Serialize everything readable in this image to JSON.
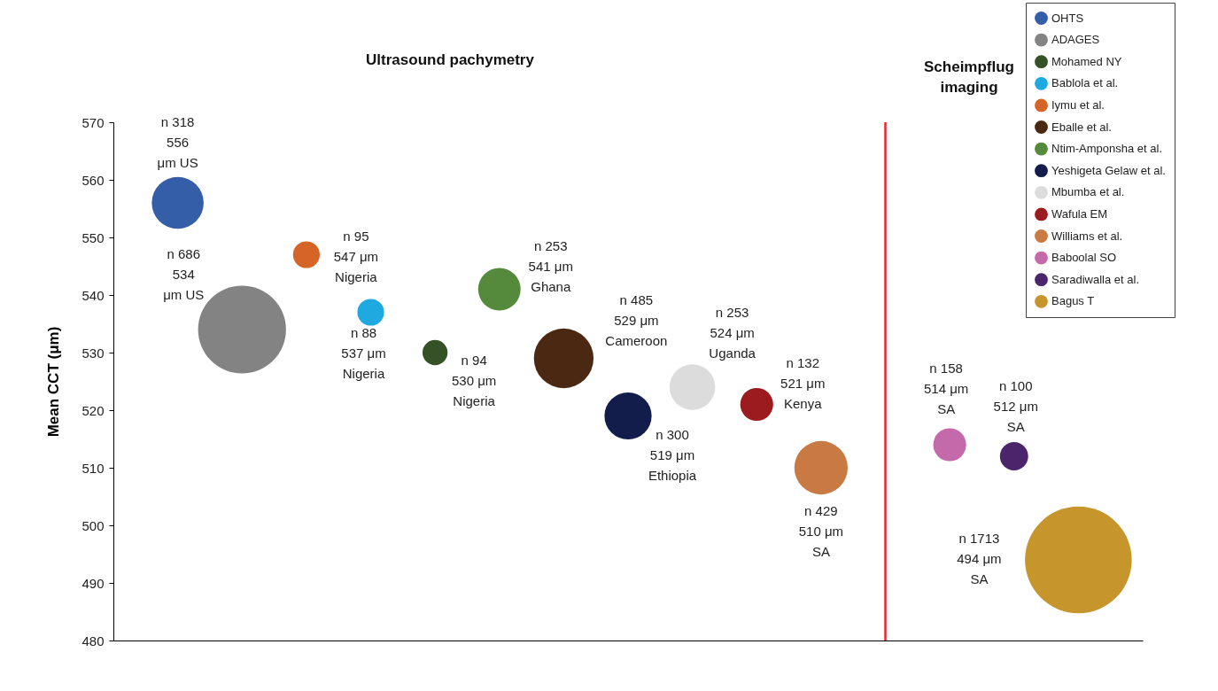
{
  "chart_data": {
    "type": "bubble",
    "ylabel": "Mean CCT (μm)",
    "categories": [
      null,
      null,
      null,
      null,
      null,
      null,
      null,
      null,
      null,
      null,
      null,
      null,
      null,
      null,
      null
    ],
    "ylim": [
      480,
      570
    ],
    "yticks": [
      480,
      490,
      500,
      510,
      520,
      530,
      540,
      550,
      560,
      570
    ],
    "tick_labels": "y",
    "grid": false,
    "legend": "top right",
    "annotations": [
      "Ultrasound pachymetry",
      "Scheimpflug\nimaging"
    ],
    "series": [
      {
        "name": "OHTS",
        "color": "#355ea8",
        "values": [
          556,
          null,
          null,
          null,
          null,
          null,
          null,
          null,
          null,
          null,
          null,
          null,
          null,
          null,
          null
        ],
        "sizes": [
          0.236,
          null,
          null,
          null,
          null,
          null,
          null,
          null,
          null,
          null,
          null,
          null,
          null,
          null,
          null
        ],
        "value_labels": [
          "n 318\n556\nμm US",
          null,
          null,
          null,
          null,
          null,
          null,
          null,
          null,
          null,
          null,
          null,
          null,
          null,
          null
        ]
      },
      {
        "name": "ADAGES",
        "color": "#838383",
        "values": [
          null,
          534,
          null,
          null,
          null,
          null,
          null,
          null,
          null,
          null,
          null,
          null,
          null,
          null,
          null
        ],
        "sizes": [
          null,
          0.678,
          null,
          null,
          null,
          null,
          null,
          null,
          null,
          null,
          null,
          null,
          null,
          null,
          null
        ],
        "value_labels": [
          null,
          "n 686\n534\nμm US",
          null,
          null,
          null,
          null,
          null,
          null,
          null,
          null,
          null,
          null,
          null,
          null,
          null
        ]
      },
      {
        "name": "Mohamed NY",
        "color": "#345226",
        "values": [
          null,
          null,
          null,
          null,
          530,
          null,
          null,
          null,
          null,
          null,
          null,
          null,
          null,
          null,
          null
        ],
        "sizes": [
          null,
          null,
          null,
          null,
          0.055,
          null,
          null,
          null,
          null,
          null,
          null,
          null,
          null,
          null,
          null
        ],
        "value_labels": [
          null,
          null,
          null,
          null,
          "n 94\n530 μm\nNigeria",
          null,
          null,
          null,
          null,
          null,
          null,
          null,
          null,
          null,
          null
        ]
      },
      {
        "name": "Bablola et al.",
        "color": "#1ea9e1",
        "values": [
          null,
          null,
          null,
          537,
          null,
          null,
          null,
          null,
          null,
          null,
          null,
          null,
          null,
          null,
          null
        ],
        "sizes": [
          null,
          null,
          null,
          0.0625,
          null,
          null,
          null,
          null,
          null,
          null,
          null,
          null,
          null,
          null,
          null
        ],
        "value_labels": [
          null,
          null,
          null,
          "n 88\n537 μm\nNigeria",
          null,
          null,
          null,
          null,
          null,
          null,
          null,
          null,
          null,
          null,
          null
        ]
      },
      {
        "name": "Iymu et al.",
        "color": "#d66426",
        "values": [
          null,
          null,
          547,
          null,
          null,
          null,
          null,
          null,
          null,
          null,
          null,
          null,
          null,
          null,
          null
        ],
        "sizes": [
          null,
          null,
          0.0625,
          null,
          null,
          null,
          null,
          null,
          null,
          null,
          null,
          null,
          null,
          null,
          null
        ],
        "value_labels": [
          null,
          null,
          "n 95\n547 μm\nNigeria",
          null,
          null,
          null,
          null,
          null,
          null,
          null,
          null,
          null,
          null,
          null,
          null
        ]
      },
      {
        "name": "Eballe et al.",
        "color": "#4b2811",
        "values": [
          null,
          null,
          null,
          null,
          null,
          null,
          529,
          null,
          null,
          null,
          null,
          null,
          null,
          null,
          null
        ],
        "sizes": [
          null,
          null,
          null,
          null,
          null,
          null,
          0.312,
          null,
          null,
          null,
          null,
          null,
          null,
          null,
          null
        ],
        "value_labels": [
          null,
          null,
          null,
          null,
          null,
          null,
          "n 485\n529 μm\nCameroon",
          null,
          null,
          null,
          null,
          null,
          null,
          null,
          null
        ]
      },
      {
        "name": "Ntim-Amponsha et al.",
        "color": "#558a3c",
        "values": [
          null,
          null,
          null,
          null,
          null,
          541,
          null,
          null,
          null,
          null,
          null,
          null,
          null,
          null,
          null
        ],
        "sizes": [
          null,
          null,
          null,
          null,
          null,
          0.158,
          null,
          null,
          null,
          null,
          null,
          null,
          null,
          null,
          null
        ],
        "value_labels": [
          null,
          null,
          null,
          null,
          null,
          "n 253\n541 μm\nGhana",
          null,
          null,
          null,
          null,
          null,
          null,
          null,
          null,
          null
        ]
      },
      {
        "name": "Yeshigeta Gelaw et al.",
        "color": "#121d4b",
        "values": [
          null,
          null,
          null,
          null,
          null,
          null,
          null,
          519,
          null,
          null,
          null,
          null,
          null,
          null,
          null
        ],
        "sizes": [
          null,
          null,
          null,
          null,
          null,
          null,
          null,
          0.195,
          null,
          null,
          null,
          null,
          null,
          null,
          null
        ],
        "value_labels": [
          null,
          null,
          null,
          null,
          null,
          null,
          null,
          "n 300\n519 μm\nEthiopia",
          null,
          null,
          null,
          null,
          null,
          null,
          null
        ]
      },
      {
        "name": "Mbumba et al.",
        "color": "#dcdcdc",
        "values": [
          null,
          null,
          null,
          null,
          null,
          null,
          null,
          null,
          524,
          null,
          null,
          null,
          null,
          null,
          null
        ],
        "sizes": [
          null,
          null,
          null,
          null,
          null,
          null,
          null,
          null,
          0.182,
          null,
          null,
          null,
          null,
          null,
          null
        ],
        "value_labels": [
          null,
          null,
          null,
          null,
          null,
          null,
          null,
          null,
          "n 253\n524 μm\nUganda",
          null,
          null,
          null,
          null,
          null,
          null
        ]
      },
      {
        "name": "Wafula EM",
        "color": "#9c1b1f",
        "values": [
          null,
          null,
          null,
          null,
          null,
          null,
          null,
          null,
          null,
          521,
          null,
          null,
          null,
          null,
          null
        ],
        "sizes": [
          null,
          null,
          null,
          null,
          null,
          null,
          null,
          null,
          null,
          0.095,
          null,
          null,
          null,
          null,
          null
        ],
        "value_labels": [
          null,
          null,
          null,
          null,
          null,
          null,
          null,
          null,
          null,
          "n 132\n521 μm\nKenya",
          null,
          null,
          null,
          null,
          null
        ]
      },
      {
        "name": "Williams et al.",
        "color": "#c97a43",
        "values": [
          null,
          null,
          null,
          null,
          null,
          null,
          null,
          null,
          null,
          null,
          510,
          null,
          null,
          null,
          null
        ],
        "sizes": [
          null,
          null,
          null,
          null,
          null,
          null,
          null,
          null,
          null,
          null,
          0.25,
          null,
          null,
          null,
          null
        ],
        "value_labels": [
          null,
          null,
          null,
          null,
          null,
          null,
          null,
          null,
          null,
          null,
          "n 429\n510 μm\nSA",
          null,
          null,
          null,
          null
        ]
      },
      {
        "name": "Baboolal SO",
        "color": "#c46aaa",
        "values": [
          null,
          null,
          null,
          null,
          null,
          null,
          null,
          null,
          null,
          null,
          null,
          null,
          514,
          null,
          null
        ],
        "sizes": [
          null,
          null,
          null,
          null,
          null,
          null,
          null,
          null,
          null,
          null,
          null,
          null,
          0.095,
          null,
          null
        ],
        "value_labels": [
          null,
          null,
          null,
          null,
          null,
          null,
          null,
          null,
          null,
          null,
          null,
          null,
          "n 158\n514 μm\nSA",
          null,
          null
        ]
      },
      {
        "name": "Saradiwalla et al.",
        "color": "#4a256c",
        "values": [
          null,
          null,
          null,
          null,
          null,
          null,
          null,
          null,
          null,
          null,
          null,
          null,
          null,
          512,
          null
        ],
        "sizes": [
          null,
          null,
          null,
          null,
          null,
          null,
          null,
          null,
          null,
          null,
          null,
          null,
          null,
          0.07,
          null
        ],
        "value_labels": [
          null,
          null,
          null,
          null,
          null,
          null,
          null,
          null,
          null,
          null,
          null,
          null,
          null,
          "n 100\n512 μm\nSA",
          null
        ]
      },
      {
        "name": "Bagus T",
        "color": "#c6962c",
        "values": [
          null,
          null,
          null,
          null,
          null,
          null,
          null,
          null,
          null,
          null,
          null,
          null,
          null,
          null,
          494
        ],
        "sizes": [
          null,
          null,
          null,
          null,
          null,
          null,
          null,
          null,
          null,
          null,
          null,
          null,
          null,
          null,
          1
        ],
        "value_labels": [
          null,
          null,
          null,
          null,
          null,
          null,
          null,
          null,
          null,
          null,
          null,
          null,
          null,
          null,
          "n 1713\n494 μm\nSA"
        ]
      }
    ]
  }
}
